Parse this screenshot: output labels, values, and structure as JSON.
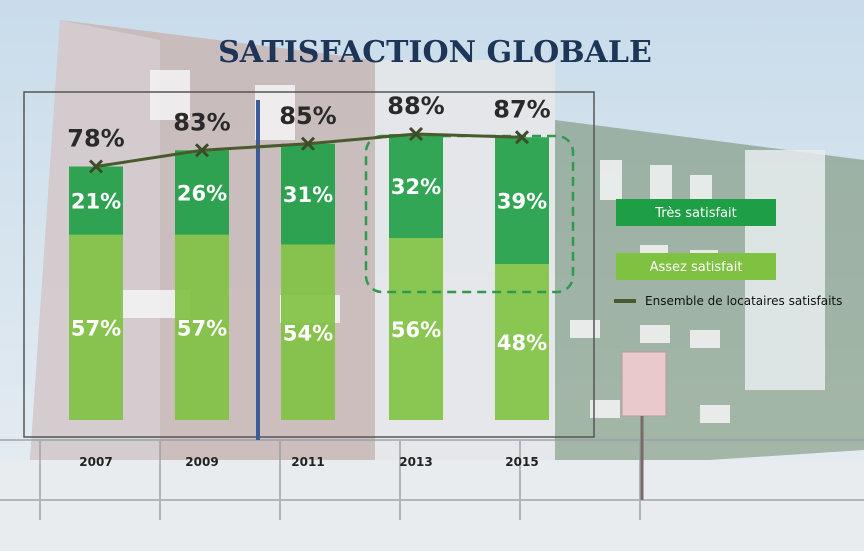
{
  "chart_data": {
    "type": "bar",
    "title": "SATISFACTION GLOBALE",
    "categories": [
      "2007",
      "2009",
      "2011",
      "2013",
      "2015"
    ],
    "series": [
      {
        "name": "Assez satisfait",
        "values": [
          57,
          57,
          54,
          56,
          48
        ],
        "labels": [
          "57%",
          "57%",
          "54%",
          "56%",
          "48%"
        ]
      },
      {
        "name": "Très satisfait",
        "values": [
          21,
          26,
          31,
          32,
          39
        ],
        "labels": [
          "21%",
          "26%",
          "31%",
          "32%",
          "39%"
        ]
      },
      {
        "name": "Ensemble de locataires satisfaits",
        "type": "line",
        "values": [
          78,
          83,
          85,
          88,
          87
        ],
        "labels": [
          "78%",
          "83%",
          "85%",
          "88%",
          "87%"
        ]
      }
    ],
    "stacked": true,
    "ylim": [
      0,
      100
    ],
    "grid": false,
    "legend": "right",
    "highlight": [
      "2013",
      "2015"
    ],
    "colors": {
      "tres": "#1e9e45",
      "assez": "#7fc241",
      "line": "#4a5a2e",
      "marker": "#3e4a2a",
      "title": "#1d3557",
      "divider": "#3b5b9a",
      "highlight": "#2f9a4f"
    }
  }
}
